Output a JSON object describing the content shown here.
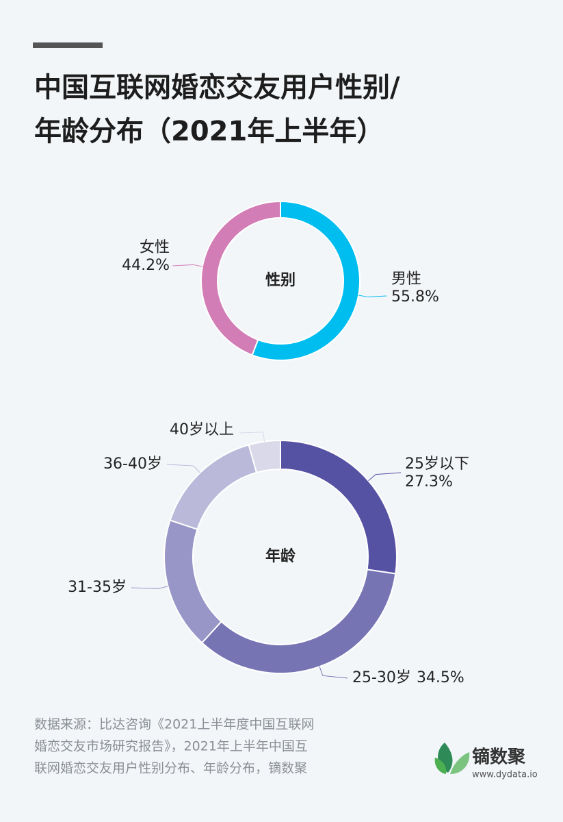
{
  "header": {
    "title": [
      "中国互联网婚恋交友用户性别/",
      "年龄分布（2021年上半年）"
    ]
  },
  "chart_data": [
    {
      "type": "pie",
      "center_label": "性别",
      "categories": [
        "男性",
        "女性"
      ],
      "values": [
        55.8,
        44.2
      ],
      "value_labels": [
        "55.8%",
        "44.2%"
      ],
      "colors": [
        "#00bdf0",
        "#d27db5"
      ]
    },
    {
      "type": "pie",
      "center_label": "年龄",
      "categories": [
        "25岁以下",
        "25-30岁",
        "31-35岁",
        "36-40岁",
        "40岁以上"
      ],
      "values": [
        27.3,
        34.5,
        18.3,
        15.5,
        4.4
      ],
      "value_labels": [
        "27.3%",
        "34.5%",
        null,
        null,
        null
      ],
      "colors": [
        "#5652a3",
        "#7774b4",
        "#9896c7",
        "#bab9da",
        "#d9d9ea"
      ]
    }
  ],
  "footer": {
    "source": [
      "数据来源：比达咨询《2021上半年度中国互联网",
      "婚恋交友市场研究报告》，2021年上半年中国互",
      "联网婚恋交友用户性别分布、年龄分布，镝数聚"
    ],
    "brand": "镝数聚",
    "url": "www.dydata.io"
  }
}
